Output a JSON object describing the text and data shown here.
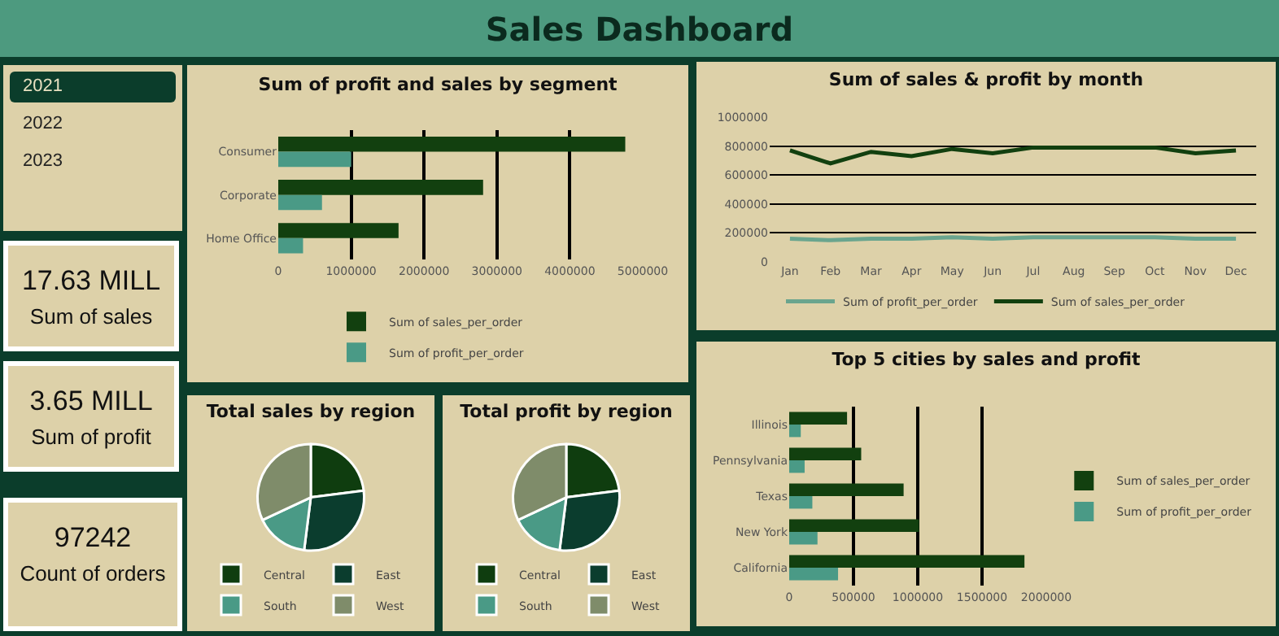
{
  "chart_data": [
    {
      "type": "other",
      "title": "Sales Dashboard"
    },
    {
      "type": "other",
      "annotations": [
        "2021",
        "2022",
        "2023"
      ]
    },
    {
      "type": "other",
      "title": "17.63 MILL",
      "subtitle": "Sum of sales"
    },
    {
      "type": "other",
      "title": "3.65 MILL",
      "subtitle": "Sum of profit"
    },
    {
      "type": "other",
      "title": "97242",
      "subtitle": "Count of orders"
    },
    {
      "type": "bar",
      "title": "Sum of profit and sales by segment",
      "orientation": "horizontal",
      "categories": [
        "Consumer",
        "Corporate",
        "Home Office"
      ],
      "series": [
        {
          "name": "Sum of sales_per_order",
          "color": "#12400f",
          "values": [
            4760000,
            2810000,
            1650000
          ]
        },
        {
          "name": "Sum of profit_per_order",
          "color": "#4a9a86",
          "values": [
            1000000,
            600000,
            340000
          ]
        }
      ],
      "xlim": [
        0,
        5000000
      ],
      "xticks": [
        0,
        1000000,
        2000000,
        3000000,
        4000000,
        5000000
      ],
      "grid": "x",
      "legend": "bottom"
    },
    {
      "type": "line",
      "title": "Sum of sales & profit by month",
      "categories": [
        "Jan",
        "Feb",
        "Mar",
        "Apr",
        "May",
        "Jun",
        "Jul",
        "Aug",
        "Sep",
        "Oct",
        "Nov",
        "Dec"
      ],
      "series": [
        {
          "name": "Sum of profit_per_order",
          "color": "#6aa58e",
          "values": [
            160000,
            150000,
            160000,
            160000,
            170000,
            160000,
            170000,
            170000,
            170000,
            170000,
            160000,
            160000
          ]
        },
        {
          "name": "Sum of sales_per_order",
          "color": "#12400f",
          "values": [
            770000,
            680000,
            760000,
            730000,
            780000,
            750000,
            790000,
            790000,
            790000,
            790000,
            750000,
            770000
          ]
        }
      ],
      "ylim": [
        0,
        1000000
      ],
      "yticks": [
        0,
        200000,
        400000,
        600000,
        800000,
        1000000
      ],
      "grid": "y",
      "legend": "bottom",
      "marker": "none"
    },
    {
      "type": "bar",
      "title": "Top 5 cities by sales and profit",
      "orientation": "horizontal",
      "categories": [
        "Illinois",
        "Pennsylvania",
        "Texas",
        "New York",
        "California"
      ],
      "series": [
        {
          "name": "Sum of sales_per_order",
          "color": "#12400f",
          "values": [
            450000,
            560000,
            890000,
            1010000,
            1830000
          ]
        },
        {
          "name": "Sum of profit_per_order",
          "color": "#4a9a86",
          "values": [
            90000,
            120000,
            180000,
            220000,
            380000
          ]
        }
      ],
      "xlim": [
        0,
        2000000
      ],
      "xticks": [
        0,
        500000,
        1000000,
        1500000,
        2000000
      ],
      "grid": "x",
      "legend": "right"
    },
    {
      "type": "pie",
      "title": "Total sales by region",
      "categories": [
        "Central",
        "East",
        "South",
        "West"
      ],
      "values": [
        23,
        29,
        16,
        32
      ],
      "colors": [
        "#0f3d0f",
        "#0b3d2e",
        "#4a9a86",
        "#7f8c6a"
      ],
      "legend": "bottom"
    },
    {
      "type": "pie",
      "title": "Total profit by region",
      "categories": [
        "Central",
        "East",
        "South",
        "West"
      ],
      "values": [
        23,
        29,
        16,
        32
      ],
      "colors": [
        "#0f3d0f",
        "#0b3d2e",
        "#4a9a86",
        "#7f8c6a"
      ],
      "legend": "bottom"
    }
  ]
}
